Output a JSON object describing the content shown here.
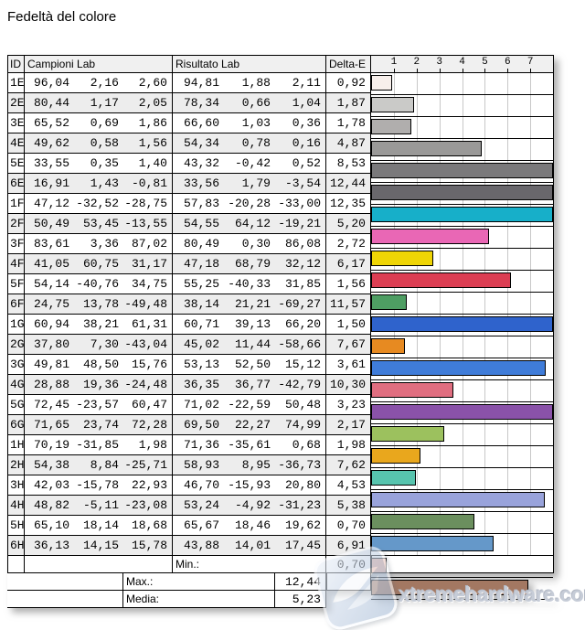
{
  "title": "Fedeltà del colore",
  "table": {
    "headers": {
      "id": "ID",
      "campioni": "Campioni Lab",
      "risultato": "Risultato Lab",
      "delta": "Delta-E"
    },
    "rows": [
      {
        "id": "1E",
        "campioni": [
          "96,04",
          "2,16",
          "2,60"
        ],
        "risultato": [
          "94,81",
          "1,88",
          "2,11"
        ],
        "delta": "0,92",
        "value": 0.92,
        "color": "#F7EFEB"
      },
      {
        "id": "2E",
        "campioni": [
          "80,44",
          "1,17",
          "2,05"
        ],
        "risultato": [
          "78,34",
          "0,66",
          "1,04"
        ],
        "delta": "1,87",
        "value": 1.87,
        "color": "#CACAC8"
      },
      {
        "id": "3E",
        "campioni": [
          "65,52",
          "0,69",
          "1,86"
        ],
        "risultato": [
          "66,60",
          "1,03",
          "0,36"
        ],
        "delta": "1,78",
        "value": 1.78,
        "color": "#B0AEAD"
      },
      {
        "id": "4E",
        "campioni": [
          "49,62",
          "0,58",
          "1,56"
        ],
        "risultato": [
          "54,34",
          "0,78",
          "0,16"
        ],
        "delta": "4,87",
        "value": 4.87,
        "color": "#9A9998"
      },
      {
        "id": "5E",
        "campioni": [
          "33,55",
          "0,35",
          "1,40"
        ],
        "risultato": [
          "43,32",
          "-0,42",
          "0,52"
        ],
        "delta": "8,53",
        "value": 8.53,
        "color": "#7A797B"
      },
      {
        "id": "6E",
        "campioni": [
          "16,91",
          "1,43",
          "-0,81"
        ],
        "risultato": [
          "33,56",
          "1,79",
          "-3,54"
        ],
        "delta": "12,44",
        "value": 12.44,
        "color": "#69676C"
      },
      {
        "id": "1F",
        "campioni": [
          "47,12",
          "-32,52",
          "-28,75"
        ],
        "risultato": [
          "57,83",
          "-20,28",
          "-33,00"
        ],
        "delta": "12,35",
        "value": 12.35,
        "color": "#17AFC9"
      },
      {
        "id": "2F",
        "campioni": [
          "50,49",
          "53,45",
          "-13,55"
        ],
        "risultato": [
          "54,55",
          "64,12",
          "-19,21"
        ],
        "delta": "5,20",
        "value": 5.2,
        "color": "#E967B5"
      },
      {
        "id": "3F",
        "campioni": [
          "83,61",
          "3,36",
          "87,02"
        ],
        "risultato": [
          "80,49",
          "0,30",
          "86,08"
        ],
        "delta": "2,72",
        "value": 2.72,
        "color": "#EFD505"
      },
      {
        "id": "4F",
        "campioni": [
          "41,05",
          "60,75",
          "31,17"
        ],
        "risultato": [
          "47,18",
          "68,79",
          "32,12"
        ],
        "delta": "6,17",
        "value": 6.17,
        "color": "#DC3E53"
      },
      {
        "id": "5F",
        "campioni": [
          "54,14",
          "-40,76",
          "34,75"
        ],
        "risultato": [
          "55,25",
          "-40,33",
          "31,85"
        ],
        "delta": "1,56",
        "value": 1.56,
        "color": "#4E9E63"
      },
      {
        "id": "6F",
        "campioni": [
          "24,75",
          "13,78",
          "-49,48"
        ],
        "risultato": [
          "38,14",
          "21,21",
          "-69,27"
        ],
        "delta": "11,57",
        "value": 11.57,
        "color": "#2F63CC"
      },
      {
        "id": "1G",
        "campioni": [
          "60,94",
          "38,21",
          "61,31"
        ],
        "risultato": [
          "60,71",
          "39,13",
          "66,20"
        ],
        "delta": "1,50",
        "value": 1.5,
        "color": "#E78A21"
      },
      {
        "id": "2G",
        "campioni": [
          "37,80",
          "7,30",
          "-43,04"
        ],
        "risultato": [
          "45,02",
          "11,44",
          "-58,66"
        ],
        "delta": "7,67",
        "value": 7.67,
        "color": "#3F7CD9"
      },
      {
        "id": "3G",
        "campioni": [
          "49,81",
          "48,50",
          "15,76"
        ],
        "risultato": [
          "53,13",
          "52,50",
          "15,12"
        ],
        "delta": "3,61",
        "value": 3.61,
        "color": "#E06E80"
      },
      {
        "id": "4G",
        "campioni": [
          "28,88",
          "19,36",
          "-24,48"
        ],
        "risultato": [
          "36,35",
          "36,77",
          "-42,79"
        ],
        "delta": "10,30",
        "value": 10.3,
        "color": "#8A52A9"
      },
      {
        "id": "5G",
        "campioni": [
          "72,45",
          "-23,57",
          "60,47"
        ],
        "risultato": [
          "71,02",
          "-22,59",
          "50,48"
        ],
        "delta": "3,23",
        "value": 3.23,
        "color": "#9CC15E"
      },
      {
        "id": "6G",
        "campioni": [
          "71,65",
          "23,74",
          "72,28"
        ],
        "risultato": [
          "69,50",
          "22,27",
          "74,99"
        ],
        "delta": "2,17",
        "value": 2.17,
        "color": "#E9A71D"
      },
      {
        "id": "1H",
        "campioni": [
          "70,19",
          "-31,85",
          "1,98"
        ],
        "risultato": [
          "71,36",
          "-35,61",
          "0,68"
        ],
        "delta": "1,98",
        "value": 1.98,
        "color": "#57C4AE"
      },
      {
        "id": "2H",
        "campioni": [
          "54,38",
          "8,84",
          "-25,71"
        ],
        "risultato": [
          "58,93",
          "8,95",
          "-36,73"
        ],
        "delta": "7,62",
        "value": 7.62,
        "color": "#99A3DB"
      },
      {
        "id": "3H",
        "campioni": [
          "42,03",
          "-15,78",
          "22,93"
        ],
        "risultato": [
          "46,70",
          "-15,93",
          "20,80"
        ],
        "delta": "4,53",
        "value": 4.53,
        "color": "#6B8F5E"
      },
      {
        "id": "4H",
        "campioni": [
          "48,82",
          "-5,11",
          "-23,08"
        ],
        "risultato": [
          "53,24",
          "-4,92",
          "-31,23"
        ],
        "delta": "5,38",
        "value": 5.38,
        "color": "#6598C9"
      },
      {
        "id": "5H",
        "campioni": [
          "65,10",
          "18,14",
          "18,68"
        ],
        "risultato": [
          "65,67",
          "18,46",
          "19,62"
        ],
        "delta": "0,70",
        "value": 0.7,
        "color": "#E3AF9F"
      },
      {
        "id": "6H",
        "campioni": [
          "36,13",
          "14,15",
          "15,78"
        ],
        "risultato": [
          "43,88",
          "14,01",
          "17,45"
        ],
        "delta": "6,91",
        "value": 6.91,
        "color": "#A37862"
      }
    ],
    "summary": [
      {
        "label": "Min.:",
        "value": "0,70"
      },
      {
        "label": "Max.:",
        "value": "12,44"
      },
      {
        "label": "Media:",
        "value": "5,23"
      }
    ]
  },
  "chart": {
    "ticks": [
      1,
      2,
      3,
      4,
      5,
      6,
      7
    ],
    "max": 8,
    "gridline_color": "#C8C8C8"
  },
  "watermark": {
    "text": "xtremehardware.com"
  },
  "colors": {
    "border": "#000000",
    "header_bg": "#F0F0F0",
    "alt_row_bg": "#EDEDED"
  },
  "chart_data": {
    "type": "bar",
    "orientation": "horizontal",
    "title": "Fedeltà del colore",
    "series_label": "Delta-E",
    "categories": [
      "1E",
      "2E",
      "3E",
      "4E",
      "5E",
      "6E",
      "1F",
      "2F",
      "3F",
      "4F",
      "5F",
      "6F",
      "1G",
      "2G",
      "3G",
      "4G",
      "5G",
      "6G",
      "1H",
      "2H",
      "3H",
      "4H",
      "5H",
      "6H"
    ],
    "values": [
      0.92,
      1.87,
      1.78,
      4.87,
      8.53,
      12.44,
      12.35,
      5.2,
      2.72,
      6.17,
      1.56,
      11.57,
      1.5,
      7.67,
      3.61,
      10.3,
      3.23,
      2.17,
      1.98,
      7.62,
      4.53,
      5.38,
      0.7,
      6.91
    ],
    "bar_colors": [
      "#F7EFEB",
      "#CACAC8",
      "#B0AEAD",
      "#9A9998",
      "#7A797B",
      "#69676C",
      "#17AFC9",
      "#E967B5",
      "#EFD505",
      "#DC3E53",
      "#4E9E63",
      "#2F63CC",
      "#E78A21",
      "#3F7CD9",
      "#E06E80",
      "#8A52A9",
      "#9CC15E",
      "#E9A71D",
      "#57C4AE",
      "#99A3DB",
      "#6B8F5E",
      "#6598C9",
      "#E3AF9F",
      "#A37862"
    ],
    "xlim": [
      0,
      8
    ],
    "xticks": [
      1,
      2,
      3,
      4,
      5,
      6,
      7
    ],
    "grid": true,
    "legend": false,
    "stats": {
      "min": 0.7,
      "max": 12.44,
      "media": 5.23
    }
  }
}
